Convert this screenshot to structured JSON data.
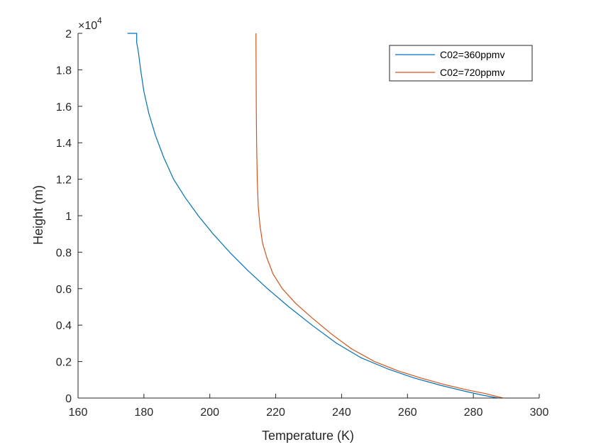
{
  "chart_data": {
    "type": "line",
    "title": "",
    "xlabel": "Temperature (K)",
    "ylabel": "Height (m)",
    "xlim": [
      160,
      300
    ],
    "ylim": [
      0,
      20000
    ],
    "x_ticks": [
      "160",
      "180",
      "200",
      "220",
      "240",
      "260",
      "280",
      "300"
    ],
    "y_ticks": [
      "0",
      "0.2",
      "0.4",
      "0.6",
      "0.8",
      "1",
      "1.2",
      "1.4",
      "1.6",
      "1.8",
      "2"
    ],
    "y_tick_values": [
      0,
      2000,
      4000,
      6000,
      8000,
      10000,
      12000,
      14000,
      16000,
      18000,
      20000
    ],
    "x_tick_values": [
      160,
      180,
      200,
      220,
      240,
      260,
      280,
      300
    ],
    "y_exponent_base": "×10",
    "y_exponent_power": "4",
    "grid": false,
    "legend_position": "top-right",
    "series": [
      {
        "name": "C02=360ppmv",
        "color": "#0072bd",
        "x": [
          175.0,
          177.8,
          177.8,
          178.3,
          179.0,
          180.0,
          181.5,
          183.5,
          186.0,
          189.0,
          192.5,
          196.5,
          201.0,
          206.0,
          211.5,
          217.5,
          224.0,
          231.0,
          238.5,
          246.0,
          254.0,
          262.0,
          270.0,
          278.0,
          283.0,
          287.5
        ],
        "y": [
          20000,
          20000,
          19500,
          19000,
          18000,
          16800,
          15600,
          14400,
          13200,
          12000,
          11000,
          10000,
          9000,
          8000,
          7000,
          6000,
          5000,
          4000,
          3000,
          2200,
          1600,
          1100,
          700,
          350,
          150,
          0
        ]
      },
      {
        "name": "C02=720ppmv",
        "color": "#d95319",
        "x": [
          214.0,
          214.05,
          214.1,
          214.2,
          214.4,
          214.7,
          215.2,
          216.0,
          217.3,
          219.2,
          222.0,
          226.0,
          231.0,
          237.0,
          243.0,
          250.0,
          257.0,
          264.0,
          271.0,
          278.0,
          283.5,
          289.0
        ],
        "y": [
          20000,
          18000,
          16000,
          14000,
          12000,
          10500,
          9500,
          8500,
          7700,
          6800,
          6000,
          5200,
          4400,
          3500,
          2700,
          2000,
          1500,
          1100,
          750,
          450,
          250,
          0
        ]
      }
    ]
  }
}
